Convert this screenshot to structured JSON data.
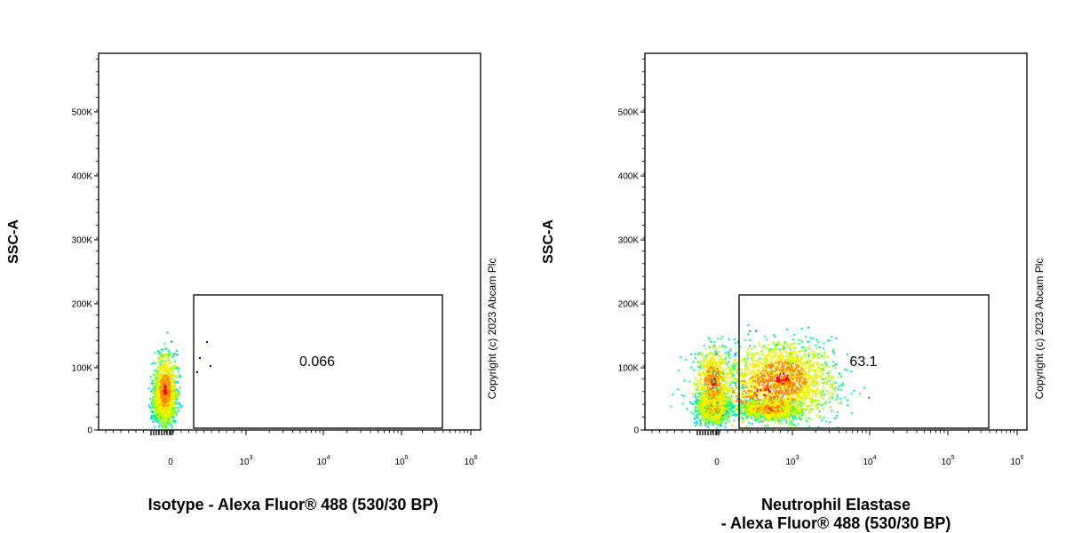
{
  "chart_data": [
    {
      "type": "scatter",
      "ylabel": "SSC-A",
      "xlabel_lines": [
        "Isotype - Alexa Fluor® 488 (530/30 BP)"
      ],
      "x_scale": "biexponential",
      "y_ticks": [
        "0",
        "100K",
        "200K",
        "300K",
        "400K",
        "500K"
      ],
      "y_tick_values": [
        0,
        100000,
        200000,
        300000,
        400000,
        500000
      ],
      "x_ticks": [
        {
          "base": "0",
          "exp": ""
        },
        {
          "base": "10",
          "exp": "3"
        },
        {
          "base": "10",
          "exp": "4"
        },
        {
          "base": "10",
          "exp": "5"
        },
        {
          "base": "10",
          "exp": "6"
        }
      ],
      "gate": {
        "label": "0.066",
        "ssc_range": [
          0,
          210000
        ]
      },
      "populations": [
        {
          "name_hidden": true,
          "center_x": "≈0",
          "center_ssc": 35000
        }
      ],
      "copyright": "Copyright (c) 2023 Abcam Plc"
    },
    {
      "type": "scatter",
      "ylabel": "SSC-A",
      "xlabel_lines": [
        "Neutrophil Elastase",
        "- Alexa Fluor® 488 (530/30 BP)"
      ],
      "x_scale": "biexponential",
      "y_ticks": [
        "0",
        "100K",
        "200K",
        "300K",
        "400K",
        "500K"
      ],
      "y_tick_values": [
        0,
        100000,
        200000,
        300000,
        400000,
        500000
      ],
      "x_ticks": [
        {
          "base": "0",
          "exp": ""
        },
        {
          "base": "10",
          "exp": "3"
        },
        {
          "base": "10",
          "exp": "4"
        },
        {
          "base": "10",
          "exp": "5"
        },
        {
          "base": "10",
          "exp": "6"
        }
      ],
      "gate": {
        "label": "63.1",
        "ssc_range": [
          0,
          210000
        ]
      },
      "populations": [
        {
          "name_hidden": true,
          "center_x": "≈0",
          "center_ssc": 30000
        },
        {
          "name_hidden": true,
          "center_x": "≈10^3",
          "center_ssc": 30000
        }
      ],
      "copyright": "Copyright (c) 2023 Abcam Plc"
    }
  ],
  "colors": {
    "density": [
      "#0000ff",
      "#0077ff",
      "#00ccff",
      "#00ff88",
      "#bbff00",
      "#ffee00",
      "#ff8800",
      "#ff0000"
    ]
  }
}
